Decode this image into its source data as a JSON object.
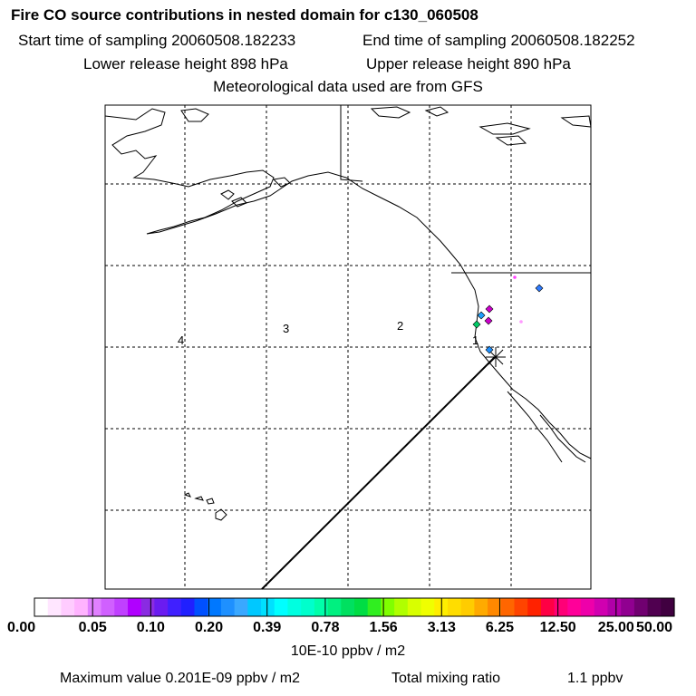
{
  "header": {
    "title": "Fire CO source contributions in nested domain for c130_060508",
    "start_time": "Start time of sampling 20060508.182233",
    "end_time": "End time of sampling 20060508.182252",
    "lower_height": "Lower release height  898 hPa",
    "upper_height": "Upper release height  890 hPa",
    "met_data": "Meteorological data used are from GFS"
  },
  "map": {
    "trajectory_labels": [
      "1",
      "2",
      "3",
      "4"
    ],
    "land_color": "#000000",
    "grid": "dashed",
    "source_marks": [
      {
        "color": "#ff44ff",
        "shape": "dot"
      },
      {
        "color": "#2f7cff",
        "shape": "diamond"
      },
      {
        "color": "#cc00cc",
        "shape": "diamond"
      },
      {
        "color": "#1ea0ff",
        "shape": "diamond"
      },
      {
        "color": "#cc00cc",
        "shape": "diamond"
      },
      {
        "color": "#00cc66",
        "shape": "diamond"
      },
      {
        "color": "#1e90ff",
        "shape": "diamond"
      },
      {
        "color": "#ff99ff",
        "shape": "dot"
      }
    ]
  },
  "colorbar": {
    "ticks": [
      "0.00",
      "0.05",
      "0.10",
      "0.20",
      "0.39",
      "0.78",
      "1.56",
      "3.13",
      "6.25",
      "12.50",
      "25.00",
      "50.00"
    ],
    "colors": [
      "#ffffff",
      "#ffe6ff",
      "#ffccff",
      "#ffb3ff",
      "#e080ff",
      "#d060ff",
      "#c040ff",
      "#b000ff",
      "#8a2be2",
      "#6a1cf0",
      "#4020ff",
      "#2020ff",
      "#0050ff",
      "#0078ff",
      "#1e90ff",
      "#3aa8ff",
      "#00c8ff",
      "#00e0ff",
      "#00ffff",
      "#00ffe0",
      "#00ffcc",
      "#00ffaa",
      "#00f080",
      "#00e060",
      "#00dd44",
      "#30ee20",
      "#80ff00",
      "#b0ff00",
      "#d8ff00",
      "#f0ff00",
      "#ffee00",
      "#ffdd00",
      "#ffcc00",
      "#ffaa00",
      "#ff8800",
      "#ff6600",
      "#ff4400",
      "#ff2200",
      "#ff0044",
      "#ff0077",
      "#ff0099",
      "#ee00aa",
      "#d000b0",
      "#b000a8",
      "#900090",
      "#700070",
      "#500050",
      "#400040"
    ],
    "units": "10E-10 ppbv / m2"
  },
  "footer": {
    "max_value": "Maximum value  0.201E-09 ppbv / m2",
    "total_label": "Total mixing ratio",
    "total_value": "1.1 ppbv"
  }
}
